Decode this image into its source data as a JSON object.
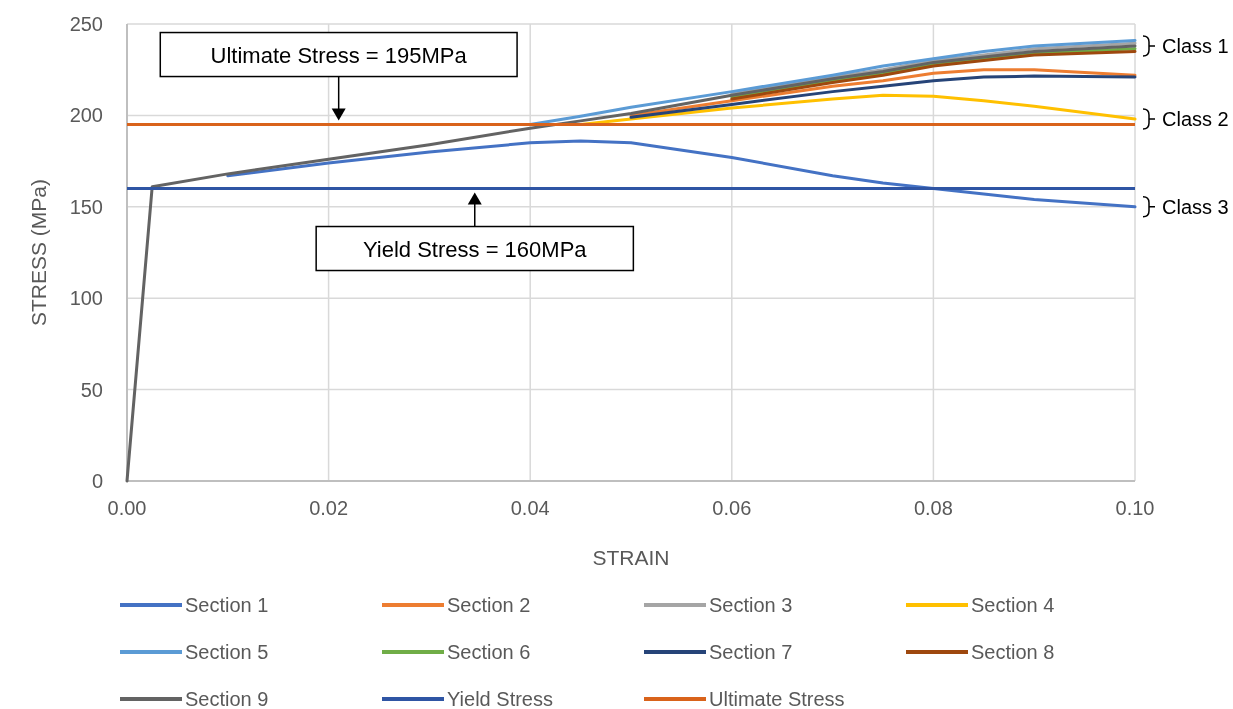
{
  "chart_data": {
    "type": "line",
    "xlabel": "STRAIN",
    "ylabel": "STRESS (MPa)",
    "xlim": [
      0,
      0.1
    ],
    "ylim": [
      0,
      250
    ],
    "xticks": [
      {
        "value": 0,
        "label": "0.00"
      },
      {
        "value": 0.02,
        "label": "0.02"
      },
      {
        "value": 0.04,
        "label": "0.04"
      },
      {
        "value": 0.06,
        "label": "0.06"
      },
      {
        "value": 0.08,
        "label": "0.08"
      },
      {
        "value": 0.1,
        "label": "0.10"
      }
    ],
    "yticks": [
      0,
      50,
      100,
      150,
      200,
      250
    ],
    "grid": true,
    "legend": "bottom",
    "line_style": "solid",
    "series": [
      {
        "name": "Section 1",
        "color": "#4472c4",
        "x": [
          0.01,
          0.02,
          0.03,
          0.04,
          0.045,
          0.05,
          0.06,
          0.07,
          0.075,
          0.08,
          0.085,
          0.09,
          0.1
        ],
        "values": [
          167,
          174,
          180,
          185,
          186,
          185,
          177,
          167,
          163,
          160,
          157,
          154,
          150
        ]
      },
      {
        "name": "Section 2",
        "color": "#ed7d31",
        "x": [
          0.05,
          0.06,
          0.07,
          0.075,
          0.08,
          0.085,
          0.09,
          0.1
        ],
        "values": [
          200,
          208,
          216,
          219,
          223,
          225,
          225,
          222
        ]
      },
      {
        "name": "Section 3",
        "color": "#a5a5a5",
        "x": [
          0.06,
          0.07,
          0.075,
          0.08,
          0.085,
          0.09,
          0.1
        ],
        "values": [
          212,
          221,
          225,
          230,
          233,
          236.5,
          239.5
        ]
      },
      {
        "name": "Section 4",
        "color": "#ffc000",
        "x": [
          0.045,
          0.05,
          0.06,
          0.07,
          0.075,
          0.08,
          0.085,
          0.09,
          0.1
        ],
        "values": [
          195,
          198,
          204,
          209,
          211,
          210.5,
          208,
          205,
          198
        ]
      },
      {
        "name": "Section 5",
        "color": "#5b9bd5",
        "x": [
          0.04,
          0.045,
          0.05,
          0.06,
          0.07,
          0.075,
          0.08,
          0.085,
          0.09,
          0.1
        ],
        "values": [
          195,
          199.5,
          204.5,
          213,
          222,
          227,
          231,
          235,
          238,
          241
        ]
      },
      {
        "name": "Section 6",
        "color": "#70ad47",
        "x": [
          0.06,
          0.07,
          0.075,
          0.08,
          0.085,
          0.09,
          0.1
        ],
        "values": [
          210,
          219,
          223,
          228,
          231,
          234,
          236.5
        ]
      },
      {
        "name": "Section 7",
        "color": "#264478",
        "x": [
          0.05,
          0.06,
          0.07,
          0.075,
          0.08,
          0.085,
          0.09,
          0.1
        ],
        "values": [
          199,
          206,
          213,
          216,
          219,
          221,
          221.5,
          221
        ]
      },
      {
        "name": "Section 8",
        "color": "#9e480e",
        "x": [
          0.06,
          0.07,
          0.075,
          0.08,
          0.085,
          0.09,
          0.1
        ],
        "values": [
          209,
          218,
          222,
          227,
          230,
          233,
          235
        ]
      },
      {
        "name": "Section 9",
        "color": "#636363",
        "x": [
          0,
          0.0025,
          0.01,
          0.02,
          0.03,
          0.04,
          0.045,
          0.05,
          0.06,
          0.07,
          0.075,
          0.08,
          0.085,
          0.09,
          0.1
        ],
        "values": [
          0,
          161,
          168,
          176,
          184,
          193,
          197,
          201,
          211,
          220,
          224,
          229,
          232,
          235,
          238
        ]
      }
    ],
    "ref_lines": [
      {
        "axis": "y",
        "value": 160,
        "label": "Yield Stress",
        "color": "#2f55a4"
      },
      {
        "axis": "y",
        "value": 195,
        "label": "Ultimate Stress",
        "color": "#d9631b"
      }
    ],
    "annotations": [
      {
        "text": "Ultimate Stress = 195MPa",
        "x": 0.021,
        "y": 195
      },
      {
        "text": "Yield Stress = 160MPa",
        "x": 0.0345,
        "y": 160
      },
      {
        "text": "Class 1",
        "x": 0.1,
        "y": 238
      },
      {
        "text": "Class 2",
        "x": 0.1,
        "y": 198
      },
      {
        "text": "Class 3",
        "x": 0.1,
        "y": 150
      }
    ]
  }
}
